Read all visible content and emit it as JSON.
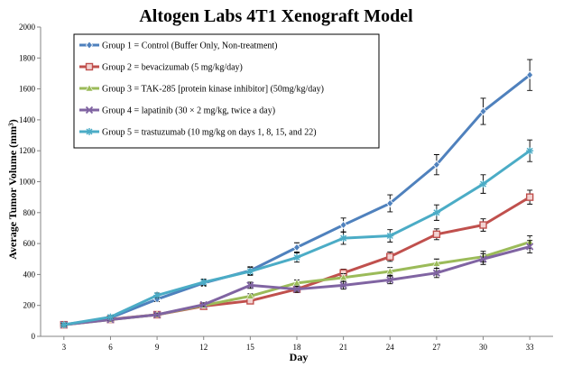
{
  "chart_data": {
    "type": "line",
    "title": "Altogen Labs 4T1 Xenograft Model",
    "xlabel": "Day",
    "ylabel": "Average Tumor Volume (mm³)",
    "x": [
      3,
      6,
      9,
      12,
      15,
      18,
      21,
      24,
      27,
      30,
      33
    ],
    "ylim": [
      0,
      2000
    ],
    "yticks": [
      0,
      200,
      400,
      600,
      800,
      1000,
      1200,
      1400,
      1600,
      1800,
      2000
    ],
    "grid": false,
    "legend_position": "top-left",
    "series": [
      {
        "name": "Group 1 = Control (Buffer Only, Non-treatment)",
        "color": "#4f81bd",
        "marker": "diamond",
        "values": [
          75,
          120,
          240,
          345,
          425,
          575,
          720,
          860,
          1110,
          1455,
          1690
        ],
        "errors": [
          10,
          10,
          15,
          20,
          25,
          30,
          45,
          55,
          65,
          85,
          100
        ]
      },
      {
        "name": "Group 2 = bevacizumab (5 mg/kg/day)",
        "color": "#c0504d",
        "marker": "square",
        "values": [
          75,
          110,
          140,
          195,
          230,
          305,
          410,
          515,
          660,
          720,
          900
        ],
        "errors": [
          8,
          8,
          10,
          12,
          15,
          20,
          25,
          30,
          35,
          40,
          45
        ]
      },
      {
        "name": "Group 3 =  TAK-285 [protein kinase inhibitor] (50mg/kg/day)",
        "color": "#9bbb59",
        "marker": "triangle",
        "values": [
          75,
          108,
          140,
          200,
          260,
          345,
          380,
          420,
          470,
          515,
          610
        ],
        "errors": [
          8,
          8,
          10,
          12,
          15,
          20,
          25,
          25,
          30,
          35,
          40
        ]
      },
      {
        "name": "Group 4 =  lapatinib (30 × 2 mg/kg, twice a day)",
        "color": "#8064a2",
        "marker": "x",
        "values": [
          75,
          108,
          140,
          205,
          330,
          305,
          330,
          365,
          410,
          500,
          580
        ],
        "errors": [
          8,
          8,
          10,
          12,
          20,
          20,
          25,
          25,
          30,
          35,
          40
        ]
      },
      {
        "name": "Group 5 = trastuzumab (10 mg/kg on days 1, 8, 15, and 22)",
        "color": "#4bacc6",
        "marker": "star",
        "values": [
          75,
          125,
          265,
          350,
          420,
          510,
          635,
          650,
          800,
          985,
          1200
        ],
        "errors": [
          10,
          10,
          15,
          20,
          25,
          30,
          40,
          40,
          50,
          60,
          70
        ]
      }
    ]
  }
}
